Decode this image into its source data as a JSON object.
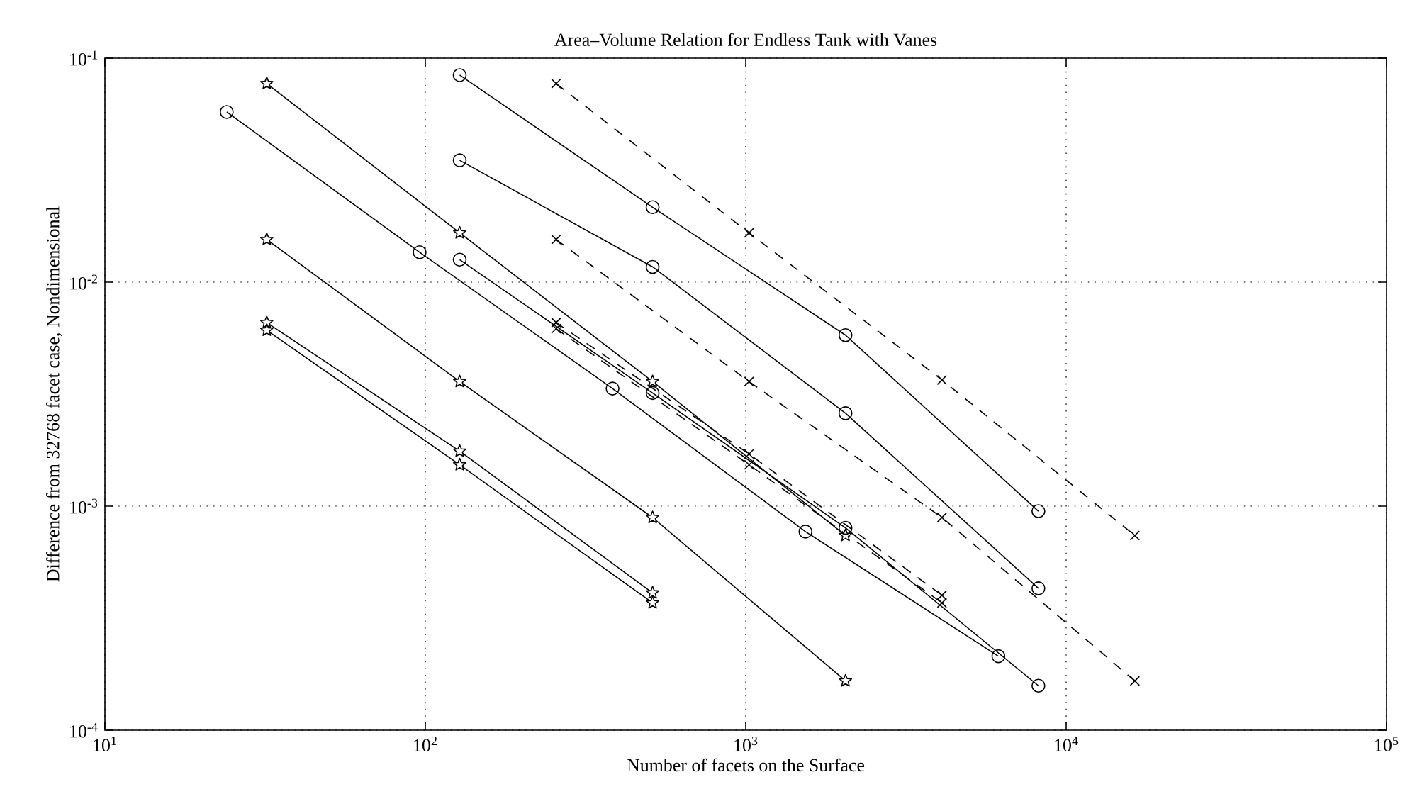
{
  "chart_data": {
    "type": "line",
    "title": "Area–Volume Relation for Endless Tank with Vanes",
    "xlabel": "Number of facets on the Surface",
    "ylabel": "Difference from 32768 facet case, Nondimensional",
    "log": "xy",
    "grid": true,
    "xlim": [
      10,
      100000
    ],
    "ylim": [
      0.0001,
      0.1
    ],
    "xticks": [
      {
        "value": 10,
        "label": "10$^{1}$"
      },
      {
        "value": 100,
        "label": "10$^{2}$"
      },
      {
        "value": 1000,
        "label": "10$^{3}$"
      },
      {
        "value": 10000,
        "label": "10$^{4}$"
      },
      {
        "value": 100000,
        "label": "10$^{5}$"
      }
    ],
    "yticks": [
      {
        "value": 0.0001,
        "label": "10$^{-4}$"
      },
      {
        "value": 0.001,
        "label": "10$^{-3}$"
      },
      {
        "value": 0.01,
        "label": "10$^{-2}$"
      },
      {
        "value": 0.1,
        "label": "10$^{-1}$"
      }
    ],
    "series": [
      {
        "color": "#000000",
        "marker": "star",
        "line_style": "solid",
        "x": [
          32,
          128,
          512,
          2048
        ],
        "values": [
          0.077,
          0.0166,
          0.0036,
          0.00074
        ]
      },
      {
        "color": "#000000",
        "marker": "star",
        "line_style": "solid",
        "x": [
          32,
          128,
          512,
          2048
        ],
        "values": [
          0.0155,
          0.0036,
          0.00089,
          0.000166
        ]
      },
      {
        "color": "#000000",
        "marker": "star",
        "line_style": "solid",
        "x": [
          32,
          128,
          512
        ],
        "values": [
          0.0066,
          0.00176,
          0.00041
        ]
      },
      {
        "color": "#000000",
        "marker": "star",
        "line_style": "solid",
        "x": [
          32,
          128,
          512
        ],
        "values": [
          0.0061,
          0.00153,
          0.00037
        ]
      },
      {
        "color": "#000000",
        "marker": "circle",
        "line_style": "solid",
        "x": [
          128,
          512,
          2048,
          8192
        ],
        "values": [
          0.084,
          0.0216,
          0.0058,
          0.00095
        ]
      },
      {
        "color": "#000000",
        "marker": "circle",
        "line_style": "solid",
        "x": [
          128,
          512,
          2048,
          8192
        ],
        "values": [
          0.035,
          0.0117,
          0.0026,
          0.00043
        ]
      },
      {
        "color": "#000000",
        "marker": "circle",
        "line_style": "solid",
        "x": [
          24,
          96,
          384,
          1536,
          6144
        ],
        "values": [
          0.0575,
          0.0136,
          0.00335,
          0.00077,
          0.000214
        ]
      },
      {
        "color": "#000000",
        "marker": "circle",
        "line_style": "solid",
        "x": [
          128,
          512,
          2048,
          8192
        ],
        "values": [
          0.0126,
          0.0032,
          0.0008,
          0.000158
        ]
      },
      {
        "color": "#000000",
        "marker": "cross",
        "line_style": "dashed",
        "x": [
          256,
          1024,
          4096,
          16384
        ],
        "values": [
          0.077,
          0.0166,
          0.00366,
          0.00074
        ]
      },
      {
        "color": "#000000",
        "marker": "cross",
        "line_style": "dashed",
        "x": [
          256,
          1024,
          4096,
          16384
        ],
        "values": [
          0.0155,
          0.0036,
          0.00089,
          0.000166
        ]
      },
      {
        "color": "#000000",
        "marker": "cross",
        "line_style": "dashed",
        "x": [
          256,
          1024,
          4096
        ],
        "values": [
          0.0066,
          0.00171,
          0.0004
        ]
      },
      {
        "color": "#000000",
        "marker": "cross",
        "line_style": "dashed",
        "x": [
          256,
          1024,
          4096
        ],
        "values": [
          0.0062,
          0.00153,
          0.00037
        ]
      }
    ]
  }
}
